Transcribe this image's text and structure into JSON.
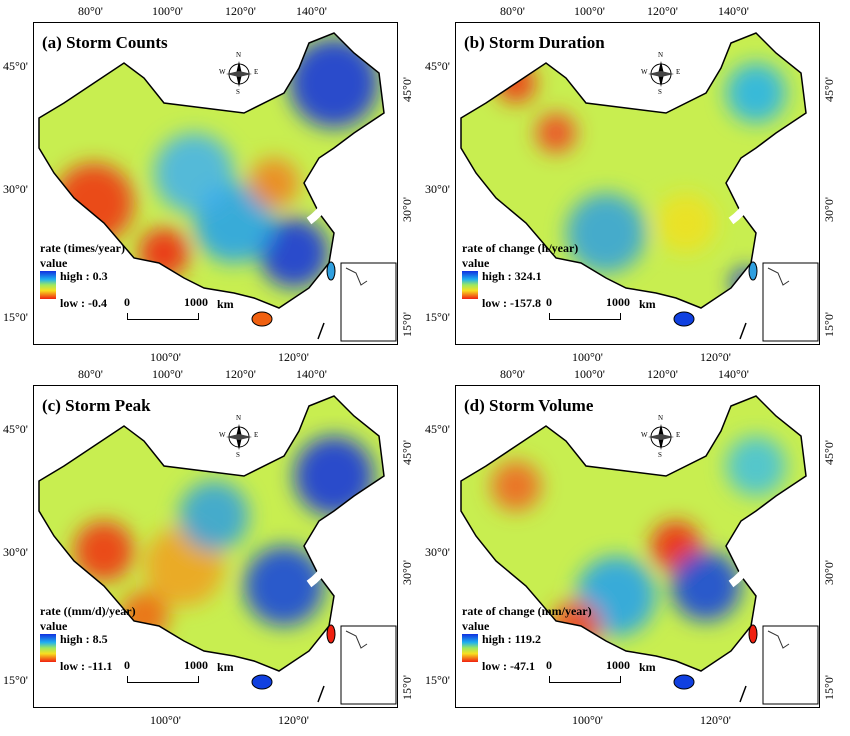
{
  "axes": {
    "top": [
      "80°0'",
      "100°0'",
      "120°0'",
      "140°0'"
    ],
    "left": [
      "45°0'",
      "30°0'",
      "15°0'"
    ],
    "right": [
      "45°0'",
      "30°0'",
      "15°0'"
    ],
    "bottom": [
      "100°0'",
      "120°0'"
    ]
  },
  "compass": {
    "n": "N",
    "s": "S",
    "e": "E",
    "w": "W"
  },
  "scale": {
    "start": "0",
    "end": "1000",
    "unit": "km"
  },
  "legend_value_label": "value",
  "color_ramp": {
    "high": "#1030e0",
    "mid": "#9ee860",
    "low": "#f02010"
  },
  "panels": [
    {
      "title": "(a) Storm Counts",
      "legend_title": "rate (times/year)",
      "high": "high : 0.3",
      "low": "low : -0.4"
    },
    {
      "title": "(b) Storm Duration",
      "legend_title": "rate of change (h/year)",
      "high": "high : 324.1",
      "low": "low : -157.8"
    },
    {
      "title": "(c) Storm Peak",
      "legend_title": "rate ((mm/d)/year)",
      "high": "high : 8.5",
      "low": "low : -11.1"
    },
    {
      "title": "(d) Storm Volume",
      "legend_title": "rate of change (mm/year)",
      "high": "high : 119.2",
      "low": "low : -47.1"
    }
  ]
}
